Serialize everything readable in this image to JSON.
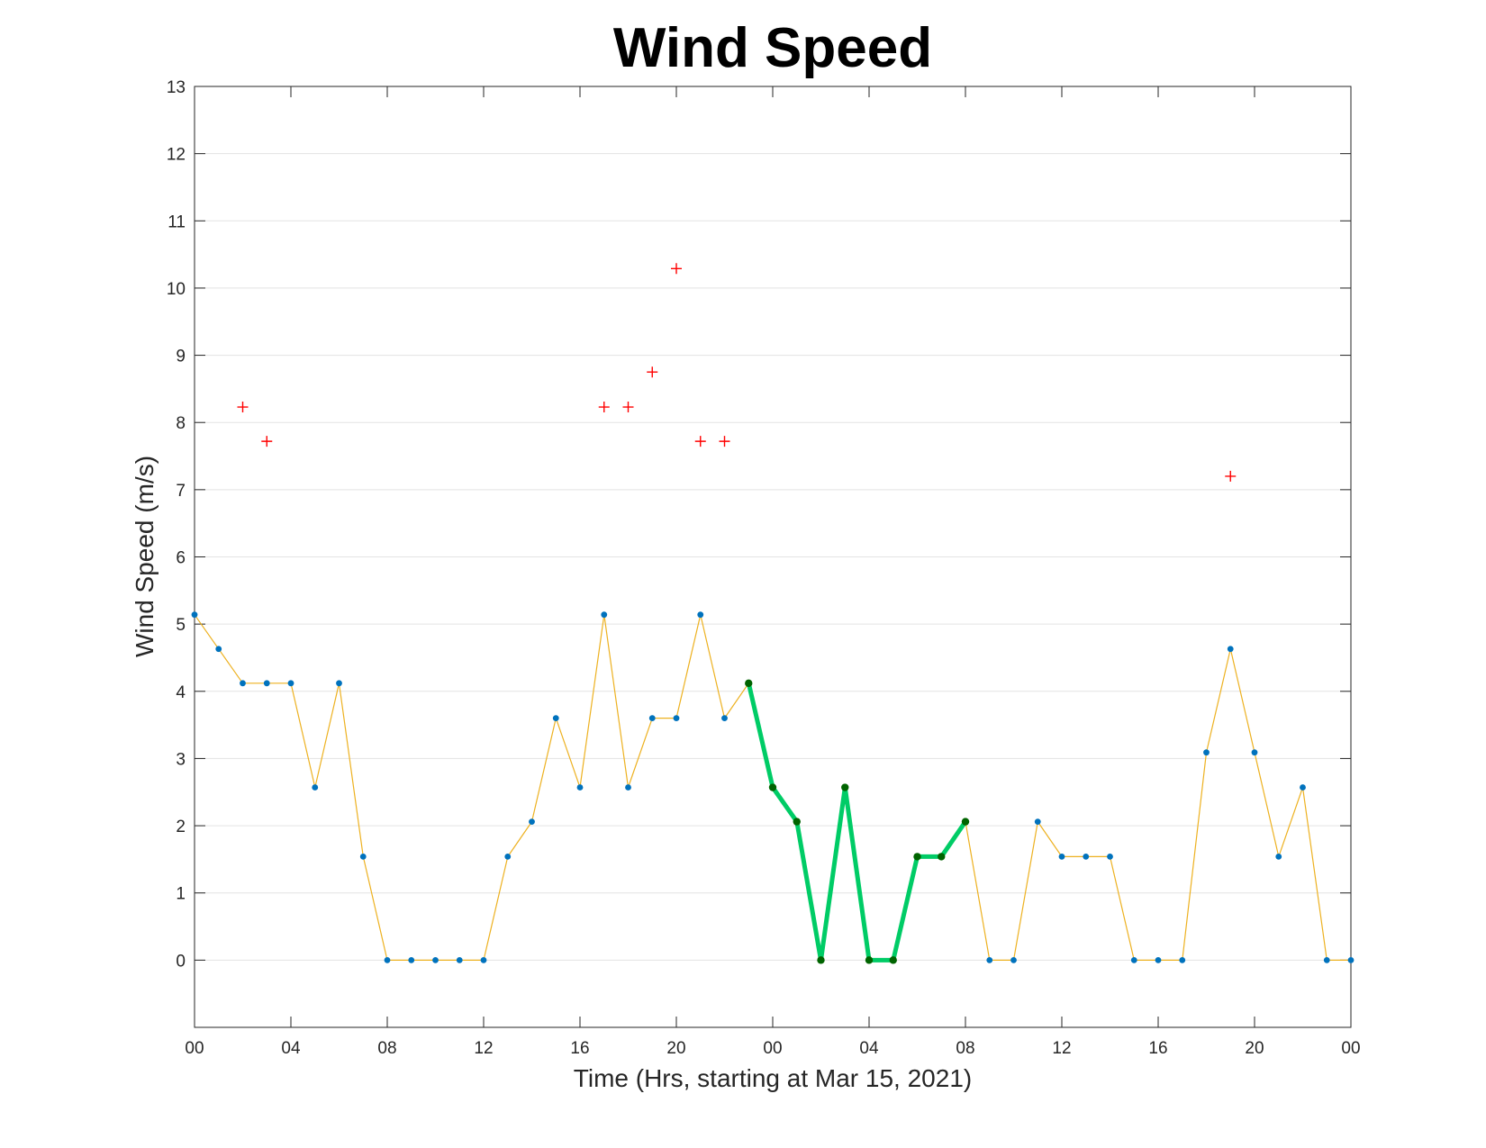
{
  "chart_data": {
    "type": "line",
    "title": "Wind Speed",
    "xlabel": "Time (Hrs, starting at Mar 15, 2021)",
    "ylabel": "Wind Speed (m/s)",
    "x_unit": "hours",
    "xlim": [
      0,
      48
    ],
    "ylim": [
      -1,
      13
    ],
    "yticks": [
      0,
      1,
      2,
      3,
      4,
      5,
      6,
      7,
      8,
      9,
      10,
      11,
      12,
      13
    ],
    "xticks": [
      0,
      4,
      8,
      12,
      16,
      20,
      24,
      28,
      32,
      36,
      40,
      44,
      48
    ],
    "xtick_labels": [
      "00",
      "04",
      "08",
      "12",
      "16",
      "20",
      "00",
      "04",
      "08",
      "12",
      "16",
      "20",
      "00"
    ],
    "grid": "horizontal",
    "series": [
      {
        "style": "line-with-dots",
        "color": "#EDB120",
        "marker_color": "#0072BD",
        "x": [
          0,
          1,
          2,
          3,
          4,
          5,
          6,
          7,
          8,
          9,
          10,
          11,
          12,
          13,
          14,
          15,
          16,
          17,
          18,
          19,
          20,
          21,
          22,
          23,
          24,
          25,
          26,
          27,
          28,
          29,
          30,
          31,
          32,
          33,
          34,
          35,
          36,
          37,
          38,
          39,
          40,
          41,
          42,
          43,
          44,
          45,
          46,
          47,
          48
        ],
        "values": [
          5.14,
          4.63,
          4.12,
          4.12,
          4.12,
          2.57,
          4.12,
          1.54,
          0,
          0,
          0,
          0,
          0,
          1.54,
          2.06,
          3.6,
          2.57,
          5.14,
          2.57,
          3.6,
          3.6,
          5.14,
          3.6,
          4.12,
          2.57,
          2.06,
          0,
          2.57,
          0,
          0,
          1.54,
          1.54,
          2.06,
          0,
          0,
          2.06,
          1.54,
          1.54,
          1.54,
          0,
          0,
          0,
          3.09,
          4.63,
          3.09,
          1.54,
          2.57,
          0,
          0
        ]
      },
      {
        "style": "thick-line",
        "color": "#00CC66",
        "marker_color": "#006400",
        "x": [
          23,
          24,
          25,
          26,
          27,
          28,
          29,
          30,
          31,
          32
        ],
        "values": [
          4.12,
          2.57,
          2.06,
          0,
          2.57,
          0,
          0,
          1.54,
          1.54,
          2.06
        ]
      },
      {
        "style": "plus-markers",
        "color": "#FF0000",
        "x": [
          2,
          3,
          17,
          18,
          19,
          20,
          21,
          22,
          43
        ],
        "values": [
          8.23,
          7.72,
          8.23,
          8.23,
          8.75,
          10.29,
          7.72,
          7.72,
          7.2
        ]
      }
    ]
  }
}
